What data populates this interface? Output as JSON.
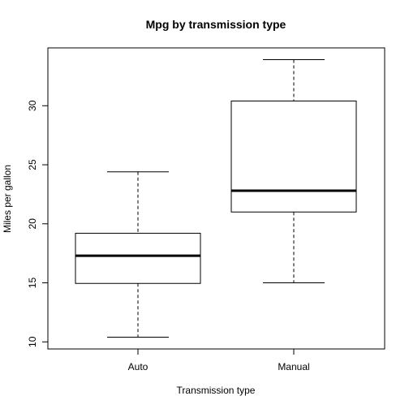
{
  "chart_data": {
    "type": "box",
    "title": "Mpg by transmission type",
    "xlabel": "Transmission type",
    "ylabel": "Miles per gallon",
    "categories": [
      "Auto",
      "Manual"
    ],
    "boxes": [
      {
        "category": "Auto",
        "min": 10.4,
        "q1": 14.95,
        "median": 17.3,
        "q3": 19.2,
        "max": 24.4
      },
      {
        "category": "Manual",
        "min": 15.0,
        "q1": 21.0,
        "median": 22.8,
        "q3": 30.4,
        "max": 33.9
      }
    ],
    "yticks": [
      10,
      15,
      20,
      25,
      30
    ],
    "ylim": [
      9.4,
      34.9
    ],
    "grid": false,
    "colors": {
      "box_stroke": "#000000",
      "box_fill": "#ffffff"
    }
  }
}
